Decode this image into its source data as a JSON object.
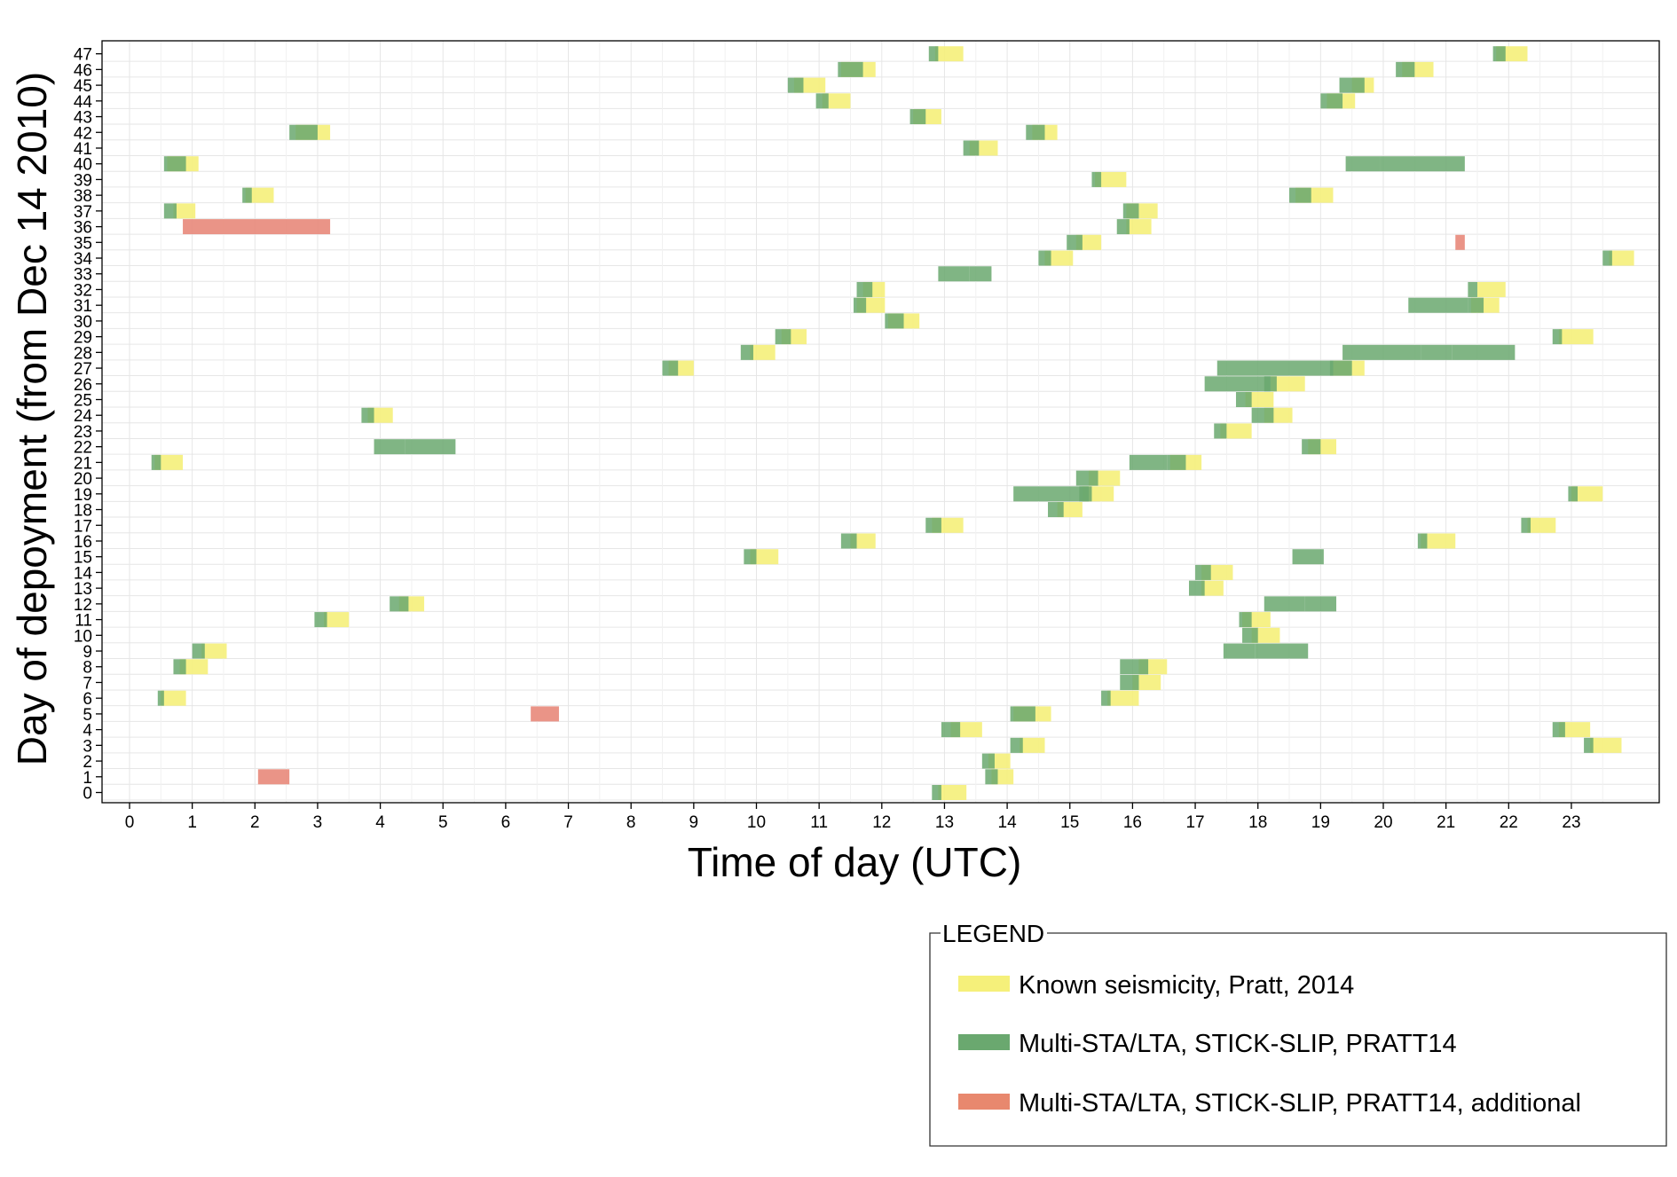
{
  "chart_data": {
    "type": "timeline",
    "xlabel": "Time of day (UTC)",
    "ylabel": "Day of depoyment (from Dec 14 2010)",
    "xlim": [
      0,
      24
    ],
    "ylim": [
      0,
      47
    ],
    "x_ticks": [
      "0",
      "1",
      "2",
      "3",
      "4",
      "5",
      "6",
      "7",
      "8",
      "9",
      "10",
      "11",
      "12",
      "13",
      "14",
      "15",
      "16",
      "17",
      "18",
      "19",
      "20",
      "21",
      "22",
      "23"
    ],
    "y_ticks": [
      "0",
      "1",
      "2",
      "3",
      "4",
      "5",
      "6",
      "7",
      "8",
      "9",
      "10",
      "11",
      "12",
      "13",
      "14",
      "15",
      "16",
      "17",
      "18",
      "19",
      "20",
      "21",
      "22",
      "23",
      "24",
      "25",
      "26",
      "27",
      "28",
      "29",
      "30",
      "31",
      "32",
      "33",
      "34",
      "35",
      "36",
      "37",
      "38",
      "39",
      "40",
      "41",
      "42",
      "43",
      "44",
      "45",
      "46",
      "47"
    ],
    "grid": true,
    "legend_title": "LEGEND",
    "legend_position": "bottom-right",
    "series": [
      {
        "name": "Known seismicity, Pratt, 2014",
        "color": "#f5f07a",
        "events": [
          {
            "day": 0,
            "start": 12.9,
            "end": 13.35
          },
          {
            "day": 1,
            "start": 13.75,
            "end": 14.1
          },
          {
            "day": 2,
            "start": 13.7,
            "end": 14.05
          },
          {
            "day": 3,
            "start": 14.2,
            "end": 14.6
          },
          {
            "day": 3,
            "start": 23.3,
            "end": 23.8
          },
          {
            "day": 4,
            "start": 13.1,
            "end": 13.6
          },
          {
            "day": 4,
            "start": 22.8,
            "end": 23.3
          },
          {
            "day": 5,
            "start": 14.1,
            "end": 14.7
          },
          {
            "day": 6,
            "start": 0.5,
            "end": 0.9
          },
          {
            "day": 6,
            "start": 15.6,
            "end": 16.1
          },
          {
            "day": 7,
            "start": 16.0,
            "end": 16.45
          },
          {
            "day": 8,
            "start": 0.8,
            "end": 1.25
          },
          {
            "day": 8,
            "start": 16.1,
            "end": 16.55
          },
          {
            "day": 9,
            "start": 1.15,
            "end": 1.55
          },
          {
            "day": 10,
            "start": 17.9,
            "end": 18.35
          },
          {
            "day": 11,
            "start": 3.1,
            "end": 3.5
          },
          {
            "day": 11,
            "start": 17.75,
            "end": 18.2
          },
          {
            "day": 12,
            "start": 4.3,
            "end": 4.7
          },
          {
            "day": 13,
            "start": 17.1,
            "end": 17.45
          },
          {
            "day": 14,
            "start": 17.1,
            "end": 17.6
          },
          {
            "day": 15,
            "start": 9.9,
            "end": 10.35
          },
          {
            "day": 16,
            "start": 11.5,
            "end": 11.9
          },
          {
            "day": 16,
            "start": 20.6,
            "end": 21.15
          },
          {
            "day": 17,
            "start": 12.8,
            "end": 13.3
          },
          {
            "day": 17,
            "start": 22.3,
            "end": 22.75
          },
          {
            "day": 18,
            "start": 14.8,
            "end": 15.2
          },
          {
            "day": 19,
            "start": 15.2,
            "end": 15.7
          },
          {
            "day": 19,
            "start": 23.0,
            "end": 23.5
          },
          {
            "day": 20,
            "start": 15.3,
            "end": 15.8
          },
          {
            "day": 21,
            "start": 0.4,
            "end": 0.85
          },
          {
            "day": 21,
            "start": 16.6,
            "end": 17.1
          },
          {
            "day": 22,
            "start": 18.8,
            "end": 19.25
          },
          {
            "day": 23,
            "start": 17.4,
            "end": 17.9
          },
          {
            "day": 24,
            "start": 3.8,
            "end": 4.2
          },
          {
            "day": 24,
            "start": 18.1,
            "end": 18.55
          },
          {
            "day": 25,
            "start": 17.8,
            "end": 18.25
          },
          {
            "day": 26,
            "start": 18.2,
            "end": 18.75
          },
          {
            "day": 27,
            "start": 8.6,
            "end": 9.0
          },
          {
            "day": 27,
            "start": 19.2,
            "end": 19.7
          },
          {
            "day": 28,
            "start": 9.9,
            "end": 10.3
          },
          {
            "day": 29,
            "start": 10.4,
            "end": 10.8
          },
          {
            "day": 29,
            "start": 22.8,
            "end": 23.35
          },
          {
            "day": 30,
            "start": 12.1,
            "end": 12.6
          },
          {
            "day": 31,
            "start": 11.6,
            "end": 12.05
          },
          {
            "day": 31,
            "start": 21.4,
            "end": 21.85
          },
          {
            "day": 32,
            "start": 11.7,
            "end": 12.05
          },
          {
            "day": 32,
            "start": 21.5,
            "end": 21.95
          },
          {
            "day": 34,
            "start": 14.6,
            "end": 15.05
          },
          {
            "day": 34,
            "start": 23.6,
            "end": 24.0
          },
          {
            "day": 35,
            "start": 15.1,
            "end": 15.5
          },
          {
            "day": 36,
            "start": 15.9,
            "end": 16.3
          },
          {
            "day": 37,
            "start": 0.7,
            "end": 1.05
          },
          {
            "day": 37,
            "start": 15.9,
            "end": 16.4
          },
          {
            "day": 38,
            "start": 1.85,
            "end": 2.3
          },
          {
            "day": 38,
            "start": 18.6,
            "end": 19.2
          },
          {
            "day": 39,
            "start": 15.4,
            "end": 15.9
          },
          {
            "day": 40,
            "start": 0.6,
            "end": 1.1
          },
          {
            "day": 41,
            "start": 13.4,
            "end": 13.85
          },
          {
            "day": 42,
            "start": 2.65,
            "end": 3.2
          },
          {
            "day": 42,
            "start": 14.4,
            "end": 14.8
          },
          {
            "day": 43,
            "start": 12.5,
            "end": 12.95
          },
          {
            "day": 44,
            "start": 11.05,
            "end": 11.5
          },
          {
            "day": 44,
            "start": 19.1,
            "end": 19.55
          },
          {
            "day": 45,
            "start": 10.6,
            "end": 11.1
          },
          {
            "day": 45,
            "start": 19.5,
            "end": 19.85
          },
          {
            "day": 46,
            "start": 11.35,
            "end": 11.9
          },
          {
            "day": 46,
            "start": 20.3,
            "end": 20.8
          },
          {
            "day": 47,
            "start": 12.85,
            "end": 13.3
          },
          {
            "day": 47,
            "start": 21.8,
            "end": 22.3
          }
        ]
      },
      {
        "name": "Multi-STA/LTA, STICK-SLIP, PRATT14",
        "color": "#6aa86f",
        "events": [
          {
            "day": 0,
            "start": 12.8,
            "end": 12.95
          },
          {
            "day": 1,
            "start": 13.65,
            "end": 13.85
          },
          {
            "day": 2,
            "start": 13.6,
            "end": 13.8
          },
          {
            "day": 3,
            "start": 14.05,
            "end": 14.25
          },
          {
            "day": 3,
            "start": 23.2,
            "end": 23.35
          },
          {
            "day": 4,
            "start": 12.95,
            "end": 13.25
          },
          {
            "day": 4,
            "start": 22.7,
            "end": 22.9
          },
          {
            "day": 5,
            "start": 14.05,
            "end": 14.45
          },
          {
            "day": 6,
            "start": 0.45,
            "end": 0.55
          },
          {
            "day": 6,
            "start": 15.5,
            "end": 15.65
          },
          {
            "day": 7,
            "start": 15.8,
            "end": 16.1
          },
          {
            "day": 8,
            "start": 0.7,
            "end": 0.9
          },
          {
            "day": 8,
            "start": 15.8,
            "end": 16.25
          },
          {
            "day": 9,
            "start": 1.0,
            "end": 1.2
          },
          {
            "day": 9,
            "start": 17.45,
            "end": 17.95
          },
          {
            "day": 9,
            "start": 17.95,
            "end": 18.8
          },
          {
            "day": 10,
            "start": 17.75,
            "end": 18.0
          },
          {
            "day": 11,
            "start": 2.95,
            "end": 3.15
          },
          {
            "day": 11,
            "start": 17.7,
            "end": 17.9
          },
          {
            "day": 12,
            "start": 4.15,
            "end": 4.45
          },
          {
            "day": 12,
            "start": 18.1,
            "end": 18.75
          },
          {
            "day": 12,
            "start": 18.75,
            "end": 19.25
          },
          {
            "day": 13,
            "start": 16.9,
            "end": 17.15
          },
          {
            "day": 14,
            "start": 17.0,
            "end": 17.25
          },
          {
            "day": 15,
            "start": 9.8,
            "end": 10.0
          },
          {
            "day": 15,
            "start": 18.55,
            "end": 19.05
          },
          {
            "day": 16,
            "start": 11.35,
            "end": 11.6
          },
          {
            "day": 16,
            "start": 20.55,
            "end": 20.7
          },
          {
            "day": 17,
            "start": 12.7,
            "end": 12.95
          },
          {
            "day": 17,
            "start": 22.2,
            "end": 22.35
          },
          {
            "day": 18,
            "start": 14.65,
            "end": 14.9
          },
          {
            "day": 19,
            "start": 14.1,
            "end": 15.3
          },
          {
            "day": 19,
            "start": 15.15,
            "end": 15.35
          },
          {
            "day": 19,
            "start": 22.95,
            "end": 23.1
          },
          {
            "day": 20,
            "start": 15.1,
            "end": 15.45
          },
          {
            "day": 21,
            "start": 0.35,
            "end": 0.5
          },
          {
            "day": 21,
            "start": 15.95,
            "end": 16.55
          },
          {
            "day": 21,
            "start": 16.55,
            "end": 16.85
          },
          {
            "day": 22,
            "start": 3.9,
            "end": 4.4
          },
          {
            "day": 22,
            "start": 4.4,
            "end": 5.2
          },
          {
            "day": 22,
            "start": 18.7,
            "end": 19.0
          },
          {
            "day": 23,
            "start": 17.3,
            "end": 17.5
          },
          {
            "day": 24,
            "start": 3.7,
            "end": 3.9
          },
          {
            "day": 24,
            "start": 17.9,
            "end": 18.25
          },
          {
            "day": 25,
            "start": 17.65,
            "end": 17.9
          },
          {
            "day": 26,
            "start": 17.15,
            "end": 18.2
          },
          {
            "day": 26,
            "start": 18.1,
            "end": 18.3
          },
          {
            "day": 27,
            "start": 8.5,
            "end": 8.75
          },
          {
            "day": 27,
            "start": 17.35,
            "end": 19.2
          },
          {
            "day": 27,
            "start": 19.15,
            "end": 19.5
          },
          {
            "day": 28,
            "start": 9.75,
            "end": 9.95
          },
          {
            "day": 28,
            "start": 19.35,
            "end": 20.6
          },
          {
            "day": 28,
            "start": 20.6,
            "end": 21.1
          },
          {
            "day": 28,
            "start": 21.1,
            "end": 22.1
          },
          {
            "day": 29,
            "start": 10.3,
            "end": 10.55
          },
          {
            "day": 29,
            "start": 22.7,
            "end": 22.85
          },
          {
            "day": 30,
            "start": 12.05,
            "end": 12.35
          },
          {
            "day": 31,
            "start": 11.55,
            "end": 11.75
          },
          {
            "day": 31,
            "start": 20.4,
            "end": 21.35
          },
          {
            "day": 31,
            "start": 21.35,
            "end": 21.6
          },
          {
            "day": 32,
            "start": 11.6,
            "end": 11.85
          },
          {
            "day": 32,
            "start": 21.35,
            "end": 21.5
          },
          {
            "day": 33,
            "start": 12.9,
            "end": 13.4
          },
          {
            "day": 33,
            "start": 13.4,
            "end": 13.75
          },
          {
            "day": 34,
            "start": 14.5,
            "end": 14.7
          },
          {
            "day": 34,
            "start": 23.5,
            "end": 23.65
          },
          {
            "day": 35,
            "start": 14.95,
            "end": 15.2
          },
          {
            "day": 36,
            "start": 15.75,
            "end": 15.95
          },
          {
            "day": 37,
            "start": 0.55,
            "end": 0.75
          },
          {
            "day": 37,
            "start": 15.85,
            "end": 16.1
          },
          {
            "day": 38,
            "start": 1.8,
            "end": 1.95
          },
          {
            "day": 38,
            "start": 18.5,
            "end": 18.85
          },
          {
            "day": 39,
            "start": 15.35,
            "end": 15.5
          },
          {
            "day": 40,
            "start": 0.55,
            "end": 0.9
          },
          {
            "day": 40,
            "start": 19.4,
            "end": 19.95
          },
          {
            "day": 40,
            "start": 19.95,
            "end": 21.3
          },
          {
            "day": 41,
            "start": 13.3,
            "end": 13.55
          },
          {
            "day": 42,
            "start": 2.55,
            "end": 3.0
          },
          {
            "day": 42,
            "start": 14.3,
            "end": 14.6
          },
          {
            "day": 43,
            "start": 12.45,
            "end": 12.7
          },
          {
            "day": 44,
            "start": 10.95,
            "end": 11.15
          },
          {
            "day": 44,
            "start": 19.0,
            "end": 19.35
          },
          {
            "day": 45,
            "start": 10.5,
            "end": 10.75
          },
          {
            "day": 45,
            "start": 19.3,
            "end": 19.7
          },
          {
            "day": 46,
            "start": 11.3,
            "end": 11.7
          },
          {
            "day": 46,
            "start": 20.2,
            "end": 20.5
          },
          {
            "day": 47,
            "start": 12.75,
            "end": 12.9
          },
          {
            "day": 47,
            "start": 21.75,
            "end": 21.95
          }
        ]
      },
      {
        "name": "Multi-STA/LTA, STICK-SLIP, PRATT14, additional",
        "color": "#e8887a",
        "events": [
          {
            "day": 1,
            "start": 2.05,
            "end": 2.55
          },
          {
            "day": 5,
            "start": 6.4,
            "end": 6.85
          },
          {
            "day": 35,
            "start": 21.15,
            "end": 21.3
          },
          {
            "day": 36,
            "start": 0.85,
            "end": 3.2
          }
        ]
      }
    ]
  }
}
